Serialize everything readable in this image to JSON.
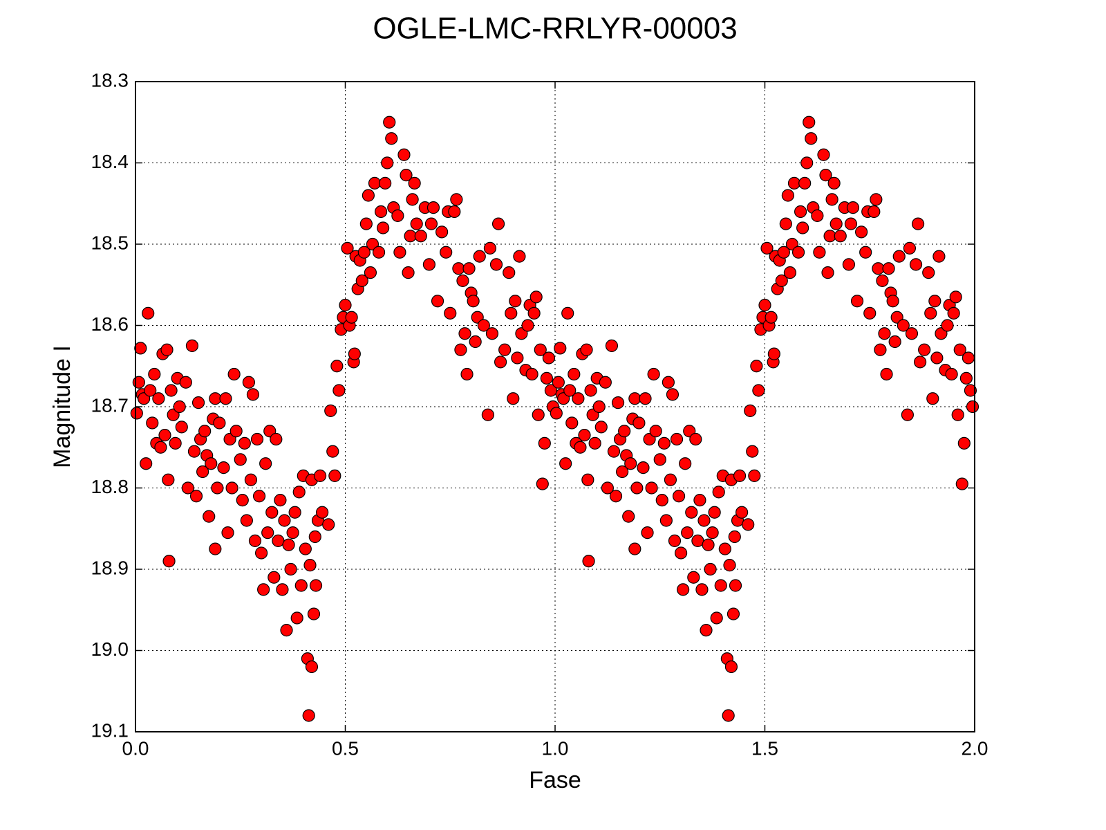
{
  "chart_data": {
    "type": "scatter",
    "title": "OGLE-LMC-RRLYR-00003",
    "x_label": "Fase",
    "y_label": "Magnitude I",
    "color": "#ff0000",
    "y_inverted": true,
    "grid": true,
    "xlim": [
      0,
      2
    ],
    "xticks": [
      {
        "value": 0,
        "label": "0.0"
      },
      0.5,
      {
        "value": 1,
        "label": "1.0"
      },
      1.5,
      {
        "value": 2,
        "label": "2.0"
      }
    ],
    "ylim": [
      18.3,
      19.1
    ],
    "yticks": [
      18.3,
      18.4,
      18.5,
      18.6,
      18.7,
      18.8,
      18.9,
      {
        "value": 19,
        "label": "19.0"
      },
      19.1
    ],
    "x": [
      0.003,
      0.008,
      0.012,
      0.016,
      0.02,
      0.025,
      0.03,
      0.035,
      0.04,
      0.045,
      0.05,
      0.055,
      0.06,
      0.065,
      0.07,
      0.075,
      0.078,
      0.08,
      0.085,
      0.09,
      0.095,
      0.1,
      0.105,
      0.11,
      0.12,
      0.125,
      0.135,
      0.14,
      0.145,
      0.15,
      0.155,
      0.16,
      0.165,
      0.17,
      0.175,
      0.18,
      0.185,
      0.19,
      0.19,
      0.195,
      0.2,
      0.21,
      0.215,
      0.22,
      0.225,
      0.23,
      0.235,
      0.24,
      0.25,
      0.255,
      0.26,
      0.265,
      0.27,
      0.275,
      0.28,
      0.285,
      0.29,
      0.295,
      0.3,
      0.305,
      0.31,
      0.315,
      0.32,
      0.325,
      0.33,
      0.335,
      0.34,
      0.345,
      0.35,
      0.355,
      0.36,
      0.365,
      0.37,
      0.375,
      0.38,
      0.385,
      0.39,
      0.395,
      0.4,
      0.405,
      0.41,
      0.413,
      0.416,
      0.42,
      0.42,
      0.425,
      0.428,
      0.43,
      0.435,
      0.44,
      0.445,
      0.46,
      0.465,
      0.47,
      0.475,
      0.48,
      0.485,
      0.49,
      0.495,
      0.5,
      0.505,
      0.51,
      0.515,
      0.52,
      0.522,
      0.525,
      0.53,
      0.535,
      0.54,
      0.545,
      0.55,
      0.555,
      0.56,
      0.565,
      0.57,
      0.58,
      0.585,
      0.59,
      0.595,
      0.6,
      0.605,
      0.61,
      0.615,
      0.625,
      0.63,
      0.64,
      0.645,
      0.65,
      0.655,
      0.66,
      0.665,
      0.67,
      0.68,
      0.69,
      0.7,
      0.705,
      0.71,
      0.72,
      0.73,
      0.74,
      0.745,
      0.75,
      0.76,
      0.765,
      0.77,
      0.775,
      0.78,
      0.785,
      0.79,
      0.795,
      0.8,
      0.805,
      0.81,
      0.815,
      0.82,
      0.83,
      0.84,
      0.845,
      0.85,
      0.86,
      0.865,
      0.87,
      0.88,
      0.89,
      0.895,
      0.9,
      0.905,
      0.91,
      0.915,
      0.92,
      0.93,
      0.935,
      0.94,
      0.945,
      0.95,
      0.955,
      0.96,
      0.965,
      0.97,
      0.975,
      0.98,
      0.985,
      0.99,
      0.995,
      1.003,
      1.008,
      1.012,
      1.016,
      1.02,
      1.025,
      1.03,
      1.035,
      1.04,
      1.045,
      1.05,
      1.055,
      1.06,
      1.065,
      1.07,
      1.075,
      1.078,
      1.08,
      1.085,
      1.09,
      1.095,
      1.1,
      1.105,
      1.11,
      1.12,
      1.125,
      1.135,
      1.14,
      1.145,
      1.15,
      1.155,
      1.16,
      1.165,
      1.17,
      1.175,
      1.18,
      1.185,
      1.19,
      1.19,
      1.195,
      1.2,
      1.21,
      1.215,
      1.22,
      1.225,
      1.23,
      1.235,
      1.24,
      1.25,
      1.255,
      1.26,
      1.265,
      1.27,
      1.275,
      1.28,
      1.285,
      1.29,
      1.295,
      1.3,
      1.305,
      1.31,
      1.315,
      1.32,
      1.325,
      1.33,
      1.335,
      1.34,
      1.345,
      1.35,
      1.355,
      1.36,
      1.365,
      1.37,
      1.375,
      1.38,
      1.385,
      1.39,
      1.395,
      1.4,
      1.405,
      1.41,
      1.413,
      1.416,
      1.42,
      1.42,
      1.425,
      1.428,
      1.43,
      1.435,
      1.44,
      1.445,
      1.46,
      1.465,
      1.47,
      1.475,
      1.48,
      1.485,
      1.49,
      1.495,
      1.5,
      1.505,
      1.51,
      1.515,
      1.52,
      1.522,
      1.525,
      1.53,
      1.535,
      1.54,
      1.545,
      1.55,
      1.555,
      1.56,
      1.565,
      1.57,
      1.58,
      1.585,
      1.59,
      1.595,
      1.6,
      1.605,
      1.61,
      1.615,
      1.625,
      1.63,
      1.64,
      1.645,
      1.65,
      1.655,
      1.66,
      1.665,
      1.67,
      1.68,
      1.69,
      1.7,
      1.705,
      1.71,
      1.72,
      1.73,
      1.74,
      1.745,
      1.75,
      1.76,
      1.765,
      1.77,
      1.775,
      1.78,
      1.785,
      1.79,
      1.795,
      1.8,
      1.805,
      1.81,
      1.815,
      1.82,
      1.83,
      1.84,
      1.845,
      1.85,
      1.86,
      1.865,
      1.87,
      1.88,
      1.89,
      1.895,
      1.9,
      1.905,
      1.91,
      1.915,
      1.92,
      1.93,
      1.935,
      1.94,
      1.945,
      1.95,
      1.955,
      1.96,
      1.965,
      1.97,
      1.975,
      1.98,
      1.985,
      1.99,
      1.995
    ],
    "values": [
      18.708,
      18.67,
      18.628,
      18.685,
      18.69,
      18.77,
      18.585,
      18.68,
      18.72,
      18.66,
      18.745,
      18.69,
      18.75,
      18.635,
      18.735,
      18.63,
      18.79,
      18.89,
      18.68,
      18.71,
      18.745,
      18.665,
      18.7,
      18.725,
      18.67,
      18.8,
      18.625,
      18.755,
      18.81,
      18.695,
      18.74,
      18.78,
      18.73,
      18.76,
      18.835,
      18.77,
      18.715,
      18.875,
      18.69,
      18.8,
      18.72,
      18.775,
      18.69,
      18.855,
      18.74,
      18.8,
      18.66,
      18.73,
      18.765,
      18.815,
      18.745,
      18.84,
      18.67,
      18.79,
      18.685,
      18.865,
      18.74,
      18.81,
      18.88,
      18.925,
      18.77,
      18.855,
      18.73,
      18.83,
      18.91,
      18.74,
      18.865,
      18.815,
      18.925,
      18.84,
      18.975,
      18.87,
      18.9,
      18.855,
      18.83,
      18.96,
      18.805,
      18.92,
      18.785,
      18.875,
      19.01,
      19.08,
      18.895,
      19.02,
      18.79,
      18.955,
      18.86,
      18.92,
      18.84,
      18.785,
      18.83,
      18.845,
      18.705,
      18.755,
      18.785,
      18.65,
      18.68,
      18.605,
      18.59,
      18.575,
      18.505,
      18.6,
      18.59,
      18.645,
      18.635,
      18.515,
      18.555,
      18.52,
      18.545,
      18.51,
      18.475,
      18.44,
      18.535,
      18.5,
      18.425,
      18.51,
      18.46,
      18.48,
      18.425,
      18.4,
      18.35,
      18.37,
      18.455,
      18.465,
      18.51,
      18.39,
      18.415,
      18.535,
      18.49,
      18.445,
      18.425,
      18.475,
      18.49,
      18.455,
      18.525,
      18.475,
      18.455,
      18.57,
      18.485,
      18.51,
      18.46,
      18.585,
      18.46,
      18.445,
      18.53,
      18.63,
      18.545,
      18.61,
      18.66,
      18.53,
      18.56,
      18.57,
      18.62,
      18.59,
      18.515,
      18.6,
      18.71,
      18.505,
      18.61,
      18.525,
      18.475,
      18.645,
      18.63,
      18.535,
      18.585,
      18.69,
      18.57,
      18.64,
      18.515,
      18.61,
      18.655,
      18.6,
      18.575,
      18.66,
      18.585,
      18.565,
      18.71,
      18.63,
      18.795,
      18.745,
      18.665,
      18.64,
      18.68,
      18.7,
      18.708,
      18.67,
      18.628,
      18.685,
      18.69,
      18.77,
      18.585,
      18.68,
      18.72,
      18.66,
      18.745,
      18.69,
      18.75,
      18.635,
      18.735,
      18.63,
      18.79,
      18.89,
      18.68,
      18.71,
      18.745,
      18.665,
      18.7,
      18.725,
      18.67,
      18.8,
      18.625,
      18.755,
      18.81,
      18.695,
      18.74,
      18.78,
      18.73,
      18.76,
      18.835,
      18.77,
      18.715,
      18.875,
      18.69,
      18.8,
      18.72,
      18.775,
      18.69,
      18.855,
      18.74,
      18.8,
      18.66,
      18.73,
      18.765,
      18.815,
      18.745,
      18.84,
      18.67,
      18.79,
      18.685,
      18.865,
      18.74,
      18.81,
      18.88,
      18.925,
      18.77,
      18.855,
      18.73,
      18.83,
      18.91,
      18.74,
      18.865,
      18.815,
      18.925,
      18.84,
      18.975,
      18.87,
      18.9,
      18.855,
      18.83,
      18.96,
      18.805,
      18.92,
      18.785,
      18.875,
      19.01,
      19.08,
      18.895,
      19.02,
      18.79,
      18.955,
      18.86,
      18.92,
      18.84,
      18.785,
      18.83,
      18.845,
      18.705,
      18.755,
      18.785,
      18.65,
      18.68,
      18.605,
      18.59,
      18.575,
      18.505,
      18.6,
      18.59,
      18.645,
      18.635,
      18.515,
      18.555,
      18.52,
      18.545,
      18.51,
      18.475,
      18.44,
      18.535,
      18.5,
      18.425,
      18.51,
      18.46,
      18.48,
      18.425,
      18.4,
      18.35,
      18.37,
      18.455,
      18.465,
      18.51,
      18.39,
      18.415,
      18.535,
      18.49,
      18.445,
      18.425,
      18.475,
      18.49,
      18.455,
      18.525,
      18.475,
      18.455,
      18.57,
      18.485,
      18.51,
      18.46,
      18.585,
      18.46,
      18.445,
      18.53,
      18.63,
      18.545,
      18.61,
      18.66,
      18.53,
      18.56,
      18.57,
      18.62,
      18.59,
      18.515,
      18.6,
      18.71,
      18.505,
      18.61,
      18.525,
      18.475,
      18.645,
      18.63,
      18.535,
      18.585,
      18.69,
      18.57,
      18.64,
      18.515,
      18.61,
      18.655,
      18.6,
      18.575,
      18.66,
      18.585,
      18.565,
      18.71,
      18.63,
      18.795,
      18.745,
      18.665,
      18.64,
      18.68,
      18.7
    ]
  }
}
